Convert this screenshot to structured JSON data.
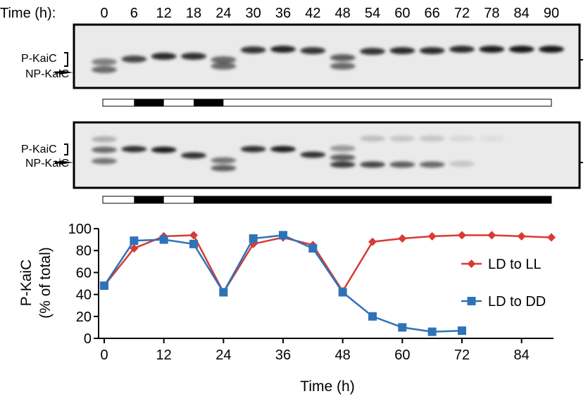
{
  "blots": {
    "time_label": "Time (h):",
    "time_points": [
      "0",
      "6",
      "12",
      "18",
      "24",
      "30",
      "36",
      "42",
      "48",
      "54",
      "60",
      "66",
      "72",
      "78",
      "84",
      "90"
    ],
    "p_label": "P-KaiC",
    "np_label": "NP-KaiC",
    "top_bar": [
      "white",
      "black",
      "white",
      "black",
      "white",
      "white",
      "white",
      "white",
      "white",
      "white",
      "white",
      "white",
      "white",
      "white",
      "white"
    ],
    "bottom_bar": [
      "white",
      "black",
      "white",
      "black",
      "black",
      "black",
      "black",
      "black",
      "black",
      "black",
      "black",
      "black",
      "black",
      "black",
      "black"
    ]
  },
  "chart_data": {
    "type": "line",
    "xlabel": "Time (h)",
    "ylabel": "P-KaiC",
    "ylabel2": "(% of total)",
    "xlim": [
      0,
      90
    ],
    "ylim": [
      0,
      100
    ],
    "xticks": [
      0,
      12,
      24,
      36,
      48,
      60,
      72,
      84
    ],
    "yticks": [
      0,
      20,
      40,
      60,
      80,
      100
    ],
    "legend_position": "right",
    "series": [
      {
        "name": "LD to LL",
        "color": "#d93a35",
        "marker": "diamond",
        "x": [
          0,
          6,
          12,
          18,
          24,
          30,
          36,
          42,
          48,
          54,
          60,
          66,
          72,
          78,
          84,
          90
        ],
        "y": [
          48,
          82,
          93,
          94,
          42,
          86,
          92,
          85,
          43,
          88,
          91,
          93,
          94,
          94,
          93,
          92
        ]
      },
      {
        "name": "LD to DD",
        "color": "#2e73b8",
        "marker": "square",
        "x": [
          0,
          6,
          12,
          18,
          24,
          30,
          36,
          42,
          48,
          54,
          60,
          66,
          72
        ],
        "y": [
          48,
          89,
          90,
          86,
          42,
          91,
          94,
          82,
          42,
          20,
          10,
          6,
          7
        ]
      }
    ]
  }
}
